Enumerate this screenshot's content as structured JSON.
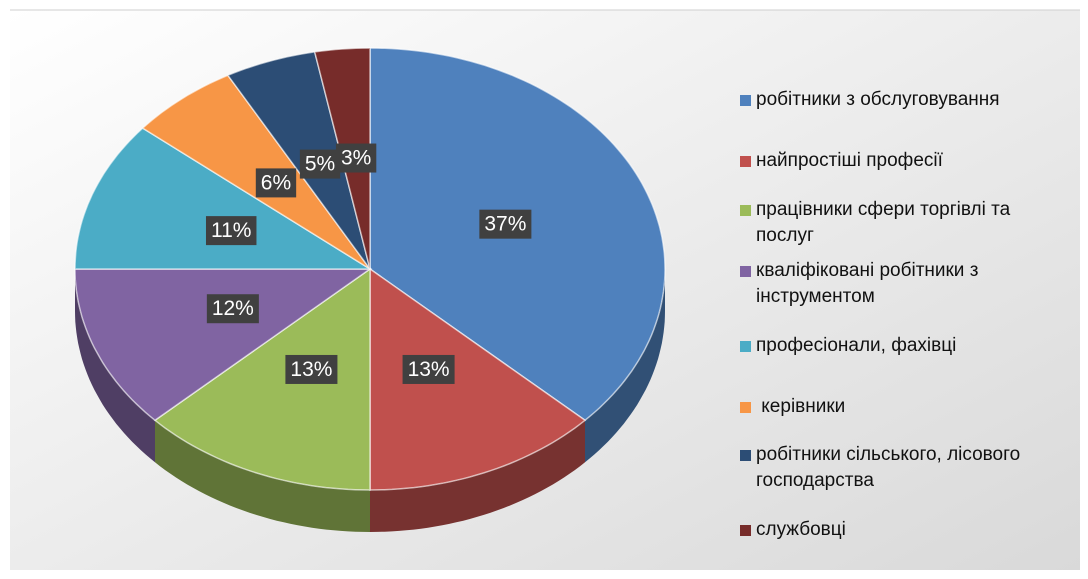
{
  "chart_data": {
    "type": "pie",
    "categories": [
      "робітники з обслуговування",
      "найпростіші професії",
      "працівники сфери торгівлі та послуг",
      "кваліфіковані робітники з інструментом",
      "професіонали, фахівці",
      " керівники",
      "робітники сільського, лісового господарства",
      "службовці"
    ],
    "values": [
      37,
      13,
      13,
      12,
      11,
      6,
      5,
      3
    ],
    "value_labels": [
      "37%",
      "13%",
      "13%",
      "12%",
      "11%",
      "6%",
      "5%",
      "3%"
    ],
    "colors": [
      "#4f81bd",
      "#c0504d",
      "#9bbb59",
      "#8064a2",
      "#4bacc6",
      "#f79646",
      "#2c4d75",
      "#772c2a"
    ],
    "legend": "right"
  }
}
